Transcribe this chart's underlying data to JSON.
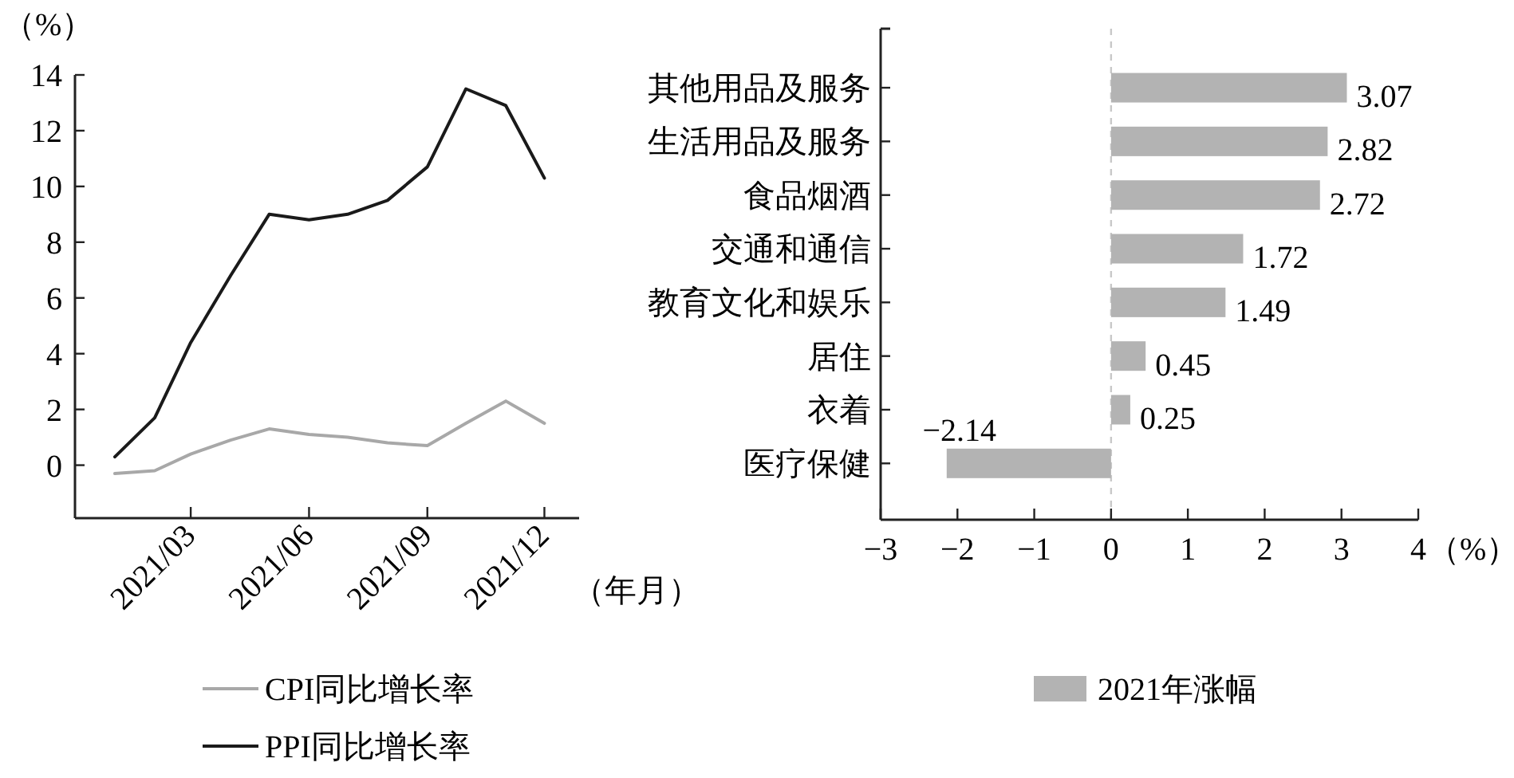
{
  "chart_data": [
    {
      "type": "line",
      "ylabel": "（%）",
      "xlabel": "（年月）",
      "x": [
        "2021-01",
        "2021-02",
        "2021-03",
        "2021-04",
        "2021-05",
        "2021-06",
        "2021-07",
        "2021-08",
        "2021-09",
        "2021-10",
        "2021-11",
        "2021-12"
      ],
      "series": [
        {
          "name": "CPI同比增长率",
          "color": "#a8a8a8",
          "values": [
            -0.3,
            -0.2,
            0.4,
            0.9,
            1.3,
            1.1,
            1.0,
            0.8,
            0.7,
            1.5,
            2.3,
            1.5
          ]
        },
        {
          "name": "PPI同比增长率",
          "color": "#1a1a1a",
          "values": [
            0.3,
            1.7,
            4.4,
            6.8,
            9.0,
            8.8,
            9.0,
            9.5,
            10.7,
            13.5,
            12.9,
            10.3
          ]
        }
      ],
      "xlim": [
        "2020-12",
        "2021-12-28"
      ],
      "xticks": [
        {
          "value": "2021-03",
          "label": "2021/03"
        },
        {
          "value": "2021-06",
          "label": "2021/06"
        },
        {
          "value": "2021-09",
          "label": "2021/09"
        },
        {
          "value": "2021-12",
          "label": "2021/12"
        }
      ],
      "ylim": [
        -1.9,
        14
      ],
      "yticks": [
        0,
        2,
        4,
        6,
        8,
        10,
        12,
        14
      ],
      "grid": false,
      "legend": "bottom",
      "marker": "none",
      "line_style": "solid"
    },
    {
      "type": "bar",
      "orientation": "horizontal",
      "xlabel": "（%）",
      "categories": [
        "其他用品及服务",
        "生活用品及服务",
        "食品烟酒",
        "交通和通信",
        "教育文化和娱乐",
        "居住",
        "衣着",
        "医疗保健"
      ],
      "series": [
        {
          "name": "2021年涨幅",
          "color": "#b3b3b3",
          "values": [
            3.07,
            2.82,
            2.72,
            1.72,
            1.49,
            0.45,
            0.25,
            -2.14
          ]
        }
      ],
      "xlim": [
        -3,
        4
      ],
      "xticks": [
        {
          "value": -3,
          "label": "−3"
        },
        {
          "value": -2,
          "label": "−2"
        },
        {
          "value": -1,
          "label": "−1"
        },
        0,
        1,
        2,
        3,
        4
      ],
      "ref_lines": [
        {
          "axis": "x",
          "value": 0,
          "color": "#c8c8c8",
          "line_style": "dashed"
        }
      ],
      "data_labels": true,
      "grid": false,
      "legend": "bottom"
    }
  ]
}
